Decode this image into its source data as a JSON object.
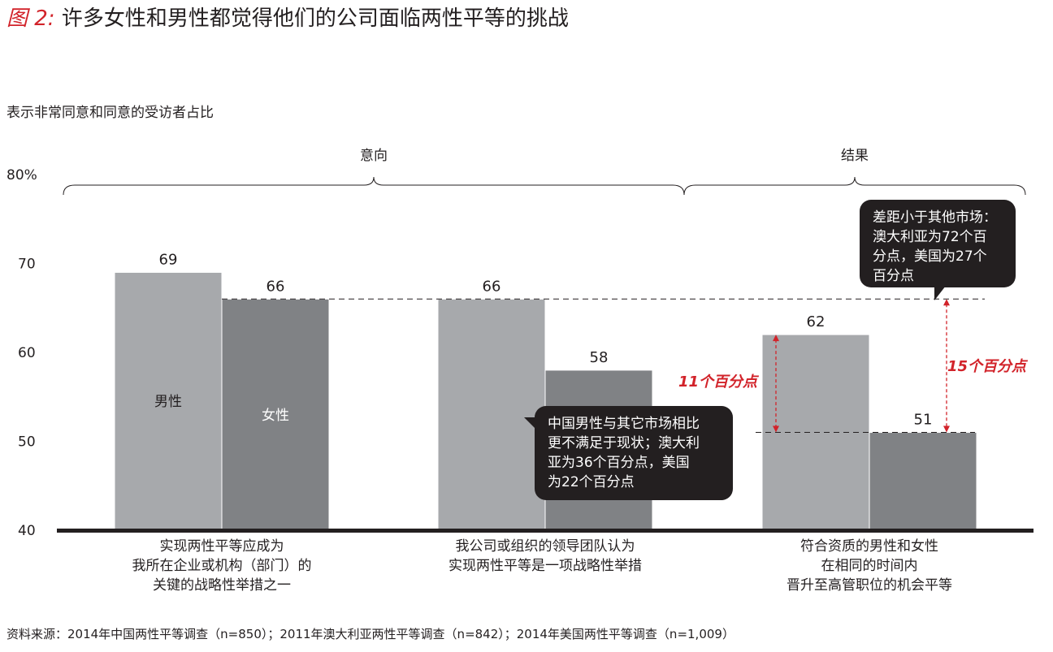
{
  "title": {
    "prefix": "图 2:",
    "text": "许多女性和男性都觉得他们的公司面临两性平等的挑战"
  },
  "subtitle": "表示非常同意和同意的受访者占比",
  "source": "资料来源：2014年中国两性平等调查（n=850）；2011年澳大利亚两性平等调查（n=842）；2014年美国两性平等调查（n=1,009）",
  "chart_data": {
    "type": "bar",
    "ylim": [
      40,
      80
    ],
    "yticks": [
      "40",
      "50",
      "60",
      "70",
      "80%"
    ],
    "groups": [
      {
        "label": "意向",
        "categories": [
          0,
          1
        ]
      },
      {
        "label": "结果",
        "categories": [
          2
        ]
      }
    ],
    "categories": [
      [
        "实现两性平等应成为",
        "我所在企业或机构（部门）的",
        "关键的战略性举措之一"
      ],
      [
        "我公司或组织的领导团队认为",
        "实现两性平等是一项战略性举措"
      ],
      [
        "符合资质的男性和女性",
        "在相同的时间内",
        "晋升至高管职位的机会平等"
      ]
    ],
    "series": [
      {
        "name": "男性",
        "values": [
          69,
          66,
          62
        ],
        "color": "#a7a9ac"
      },
      {
        "name": "女性",
        "values": [
          66,
          58,
          51
        ],
        "color": "#808285"
      }
    ],
    "annotations": [
      {
        "text": "11个百分点",
        "from": 51,
        "to": 62,
        "color": "#d2232a"
      },
      {
        "text": "15个百分点",
        "from": 51,
        "to": 66,
        "color": "#d2232a"
      }
    ],
    "reference_lines": [
      66,
      51
    ]
  },
  "callouts": {
    "china": [
      "中国男性与其它市场相比",
      "更不满足于现状；澳大利",
      "亚为36个百分点，美国",
      "为22个百分点"
    ],
    "gap": [
      "差距小于其他市场：",
      "澳大利亚为72个百",
      "分点，美国为27个",
      "百分点"
    ]
  }
}
